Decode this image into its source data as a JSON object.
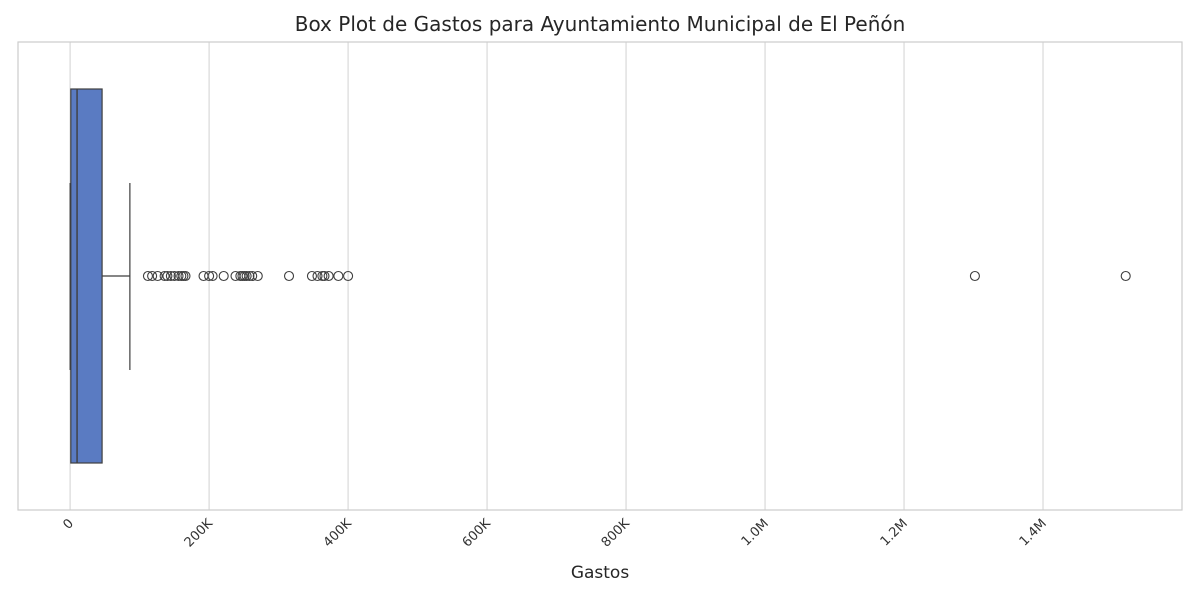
{
  "chart_data": {
    "type": "box",
    "orientation": "horizontal",
    "title": "Box Plot de Gastos para Ayuntamiento Municipal de El Peñón",
    "xlabel": "Gastos",
    "ylabel": "",
    "xlim": [
      -75000,
      1600000
    ],
    "grid": true,
    "x_ticks": [
      {
        "value": 0,
        "label": "0"
      },
      {
        "value": 200000,
        "label": "200K"
      },
      {
        "value": 400000,
        "label": "400K"
      },
      {
        "value": 600000,
        "label": "600K"
      },
      {
        "value": 800000,
        "label": "800K"
      },
      {
        "value": 1000000,
        "label": "1.0M"
      },
      {
        "value": 1200000,
        "label": "1.2M"
      },
      {
        "value": 1400000,
        "label": "1.4M"
      }
    ],
    "box": {
      "whisker_low": 0,
      "q1": 1000,
      "median": 10000,
      "q3": 46000,
      "whisker_high": 86000,
      "color": "#5a7bc2",
      "edge_color": "#3f3f3f"
    },
    "outliers": [
      112000,
      118000,
      126000,
      136000,
      140000,
      145000,
      150000,
      156000,
      160000,
      163000,
      166000,
      192000,
      200000,
      205000,
      221000,
      238000,
      245000,
      248000,
      251000,
      254000,
      258000,
      262000,
      270000,
      315000,
      348000,
      356000,
      363000,
      366000,
      372000,
      386000,
      400000,
      1302000,
      1519000
    ]
  }
}
